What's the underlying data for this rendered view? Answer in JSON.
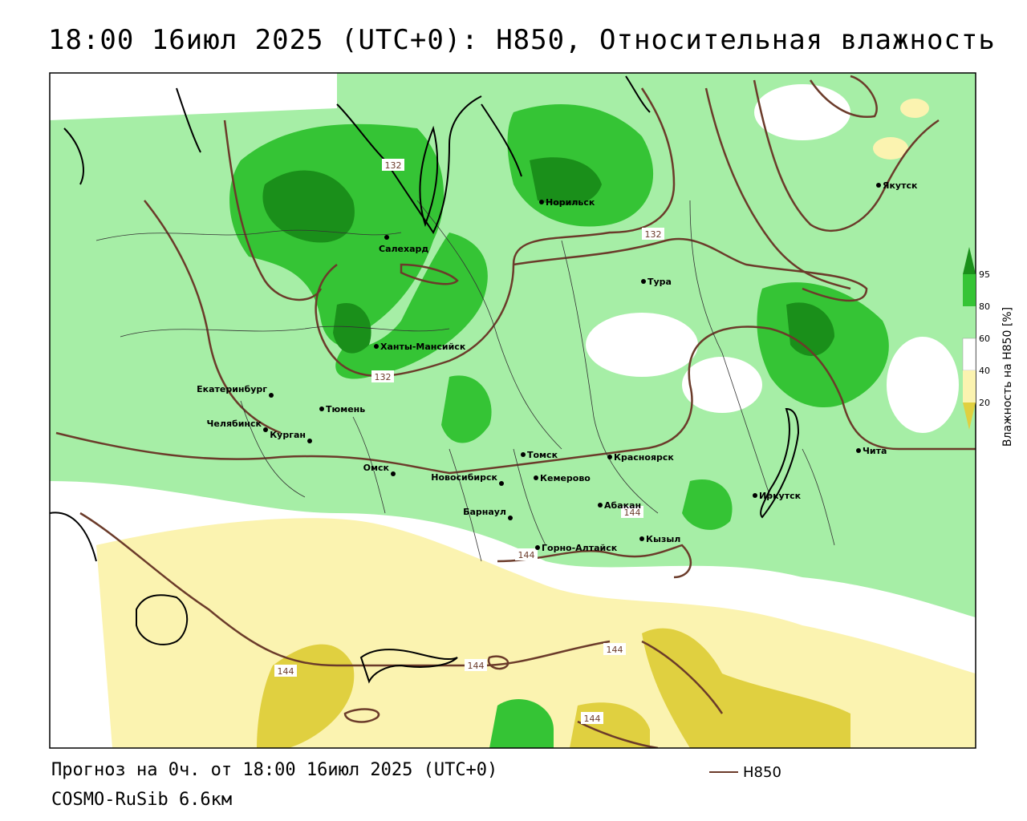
{
  "title": "18:00 16июл 2025 (UTC+0): H850, Относительная влажность",
  "footer": {
    "forecast": "Прогноз на 0ч. от 18:00 16июл 2025 (UTC+0)",
    "model": "COSMO-RuSib 6.6км",
    "legend_h850": "H850"
  },
  "colorbar": {
    "title": "Влажность на H850 [%]",
    "ticks": [
      "95",
      "80",
      "60",
      "40",
      "20"
    ],
    "colors": {
      "c95_up": "#1a8f1a",
      "c80_95": "#35c435",
      "c60_80": "#a6eea6",
      "c40_60": "#ffffff",
      "c20_40": "#fbf3b0",
      "c0_20": "#e0d040"
    }
  },
  "contour_labels": [
    "132",
    "132",
    "132",
    "144",
    "144",
    "144",
    "144",
    "144",
    "144"
  ],
  "cities": [
    {
      "name": "Якутск"
    },
    {
      "name": "Норильск"
    },
    {
      "name": "Салехард"
    },
    {
      "name": "Тура"
    },
    {
      "name": "Ханты-Мансийск"
    },
    {
      "name": "Екатеринбург"
    },
    {
      "name": "Тюмень"
    },
    {
      "name": "Челябинск"
    },
    {
      "name": "Курган"
    },
    {
      "name": "Томск"
    },
    {
      "name": "Красноярск"
    },
    {
      "name": "Омск"
    },
    {
      "name": "Новосибирск"
    },
    {
      "name": "Кемерово"
    },
    {
      "name": "Абакан"
    },
    {
      "name": "Барнаул"
    },
    {
      "name": "Кызыл"
    },
    {
      "name": "Горно-Алтайск"
    },
    {
      "name": "Иркутск"
    },
    {
      "name": "Чита"
    }
  ]
}
